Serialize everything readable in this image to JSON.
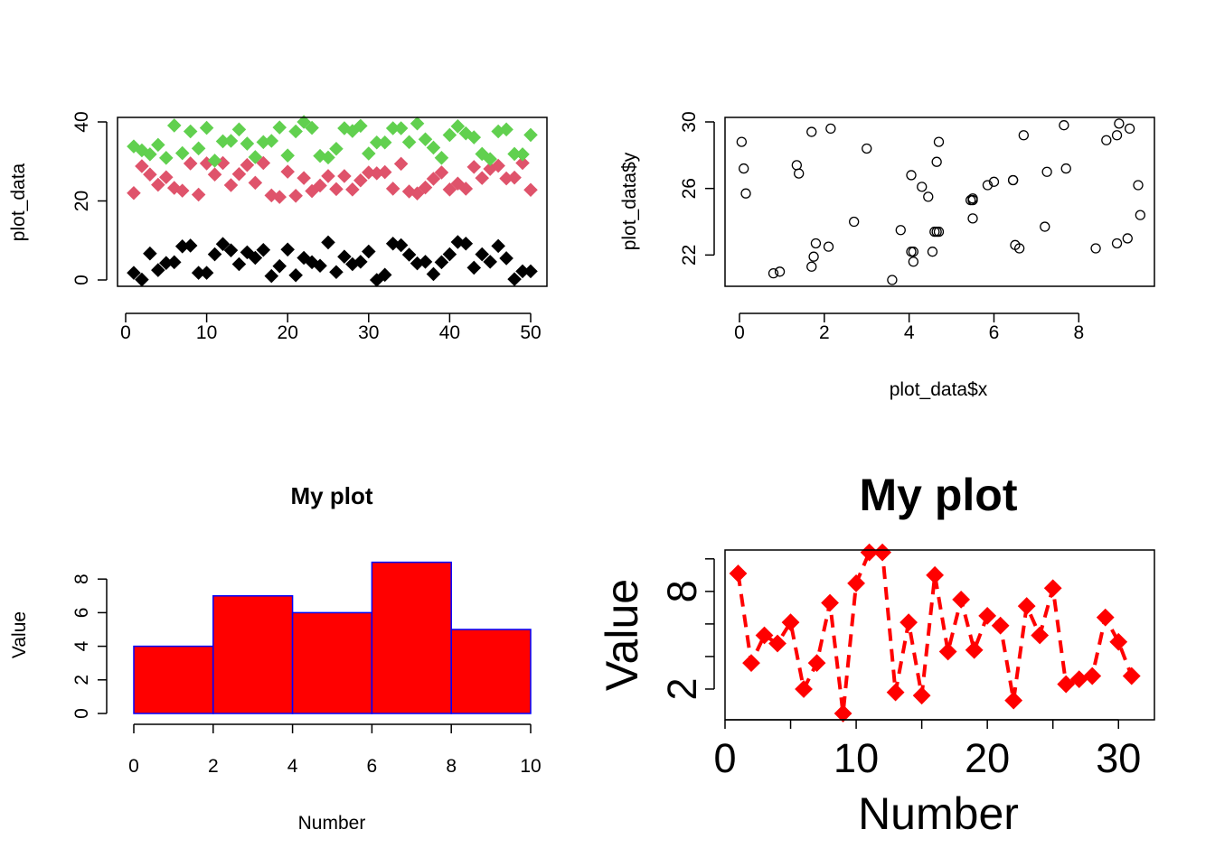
{
  "colors": {
    "black": "#000000",
    "pink": "#DF536B",
    "green": "#61D04F",
    "red": "#FF0000",
    "blue": "#0000FF"
  },
  "chart_data": [
    {
      "id": "p1",
      "type": "scatter",
      "title": "",
      "xlabel": "",
      "ylabel": "plot_data",
      "xlim": [
        0,
        50
      ],
      "ylim": [
        0,
        40
      ],
      "xticks": [
        0,
        10,
        20,
        30,
        40,
        50
      ],
      "yticks": [
        0,
        20,
        40
      ],
      "grid": false,
      "x": [
        1,
        2,
        3,
        4,
        5,
        6,
        7,
        8,
        9,
        10,
        11,
        12,
        13,
        14,
        15,
        16,
        17,
        18,
        19,
        20,
        21,
        22,
        23,
        24,
        25,
        26,
        27,
        28,
        29,
        30,
        31,
        32,
        33,
        34,
        35,
        36,
        37,
        38,
        39,
        40,
        41,
        42,
        43,
        44,
        45,
        46,
        47,
        48,
        49,
        50
      ],
      "series": [
        {
          "color": "#000000",
          "values": [
            1.8,
            0.1,
            6.7,
            2.5,
            4.3,
            4.5,
            8.5,
            8.7,
            1.8,
            1.8,
            6.5,
            9.1,
            7.5,
            4.0,
            7.0,
            5.6,
            7.6,
            1.0,
            3.5,
            7.7,
            1.2,
            5.6,
            4.5,
            3.6,
            9.5,
            2.0,
            5.9,
            4.0,
            4.6,
            7.2,
            0.0,
            1.3,
            9.2,
            8.8,
            6.4,
            4.2,
            4.6,
            1.5,
            4.5,
            6.5,
            9.6,
            9.2,
            3.1,
            6.5,
            4.6,
            8.6,
            5.5,
            0.2,
            2.2,
            2.2
          ]
        },
        {
          "color": "#DF536B",
          "values": [
            22.0,
            28.8,
            26.7,
            24.1,
            26.0,
            23.3,
            22.6,
            29.5,
            21.6,
            29.5,
            26.7,
            29.6,
            24.0,
            26.8,
            29.1,
            24.6,
            29.6,
            21.4,
            21.0,
            27.4,
            21.3,
            25.8,
            22.5,
            23.9,
            26.3,
            23.0,
            26.3,
            22.9,
            25.2,
            27.2,
            27.0,
            27.3,
            23.1,
            29.4,
            22.4,
            21.9,
            23.4,
            25.6,
            27.2,
            22.9,
            24.4,
            23.1,
            28.6,
            25.8,
            28.1,
            28.9,
            25.7,
            25.9,
            29.6,
            22.8
          ]
        },
        {
          "color": "#61D04F",
          "values": [
            33.8,
            32.8,
            31.8,
            34.2,
            30.9,
            39.1,
            32.1,
            37.6,
            33.3,
            38.5,
            30.2,
            35.1,
            35.2,
            38.1,
            34.5,
            31.1,
            34.9,
            35.2,
            38.6,
            31.5,
            37.6,
            40.0,
            38.5,
            31.4,
            31.0,
            33.2,
            38.4,
            37.7,
            39.0,
            32.0,
            34.8,
            34.8,
            38.4,
            38.4,
            34.9,
            39.6,
            35.6,
            33.5,
            30.9,
            36.7,
            38.9,
            37.1,
            36.1,
            31.9,
            30.6,
            37.6,
            38.1,
            31.9,
            31.8,
            36.7
          ]
        }
      ]
    },
    {
      "id": "p2",
      "type": "scatter",
      "title": "",
      "xlabel": "plot_data$x",
      "ylabel": "plot_data$y",
      "xlim": [
        0,
        9.4
      ],
      "ylim": [
        20.5,
        30
      ],
      "xticks": [
        0,
        2,
        4,
        6,
        8
      ],
      "yticks": [
        22,
        26,
        30
      ],
      "grid": false,
      "x": [
        0.05,
        0.1,
        0.15,
        0.8,
        0.95,
        1.35,
        1.4,
        1.7,
        1.7,
        1.75,
        1.8,
        2.1,
        2.15,
        2.7,
        3.0,
        3.6,
        3.8,
        4.05,
        4.05,
        4.1,
        4.1,
        4.3,
        4.45,
        4.55,
        4.6,
        4.65,
        4.65,
        4.7,
        4.7,
        5.45,
        5.5,
        5.5,
        5.5,
        5.85,
        6.0,
        6.45,
        6.45,
        6.5,
        6.6,
        6.7,
        7.2,
        7.25,
        7.65,
        7.7,
        8.4,
        8.65,
        8.9,
        8.9,
        8.95,
        9.15,
        9.2,
        9.4,
        9.45
      ],
      "y": [
        28.8,
        27.2,
        25.7,
        20.9,
        21.0,
        27.4,
        26.9,
        29.4,
        21.3,
        21.9,
        22.7,
        22.5,
        29.6,
        24.0,
        28.4,
        20.5,
        23.5,
        26.8,
        22.2,
        22.2,
        21.6,
        26.1,
        25.5,
        22.2,
        23.4,
        27.6,
        23.4,
        23.4,
        28.8,
        25.3,
        25.4,
        24.2,
        25.3,
        26.2,
        26.4,
        26.5,
        26.5,
        22.6,
        22.4,
        29.2,
        23.7,
        27.0,
        29.8,
        27.2,
        22.4,
        28.9,
        29.2,
        22.7,
        29.9,
        23.0,
        29.6,
        26.2,
        24.4
      ]
    },
    {
      "id": "p3",
      "type": "bar",
      "title": "My plot",
      "xlabel": "Number",
      "ylabel": "Value",
      "xlim": [
        0,
        10
      ],
      "ylim": [
        0,
        9.3
      ],
      "xticks": [
        0,
        2,
        4,
        6,
        8,
        10
      ],
      "yticks": [
        0,
        2,
        4,
        6,
        8
      ],
      "grid": false,
      "bin_edges": [
        0,
        2,
        4,
        6,
        8,
        10
      ],
      "values": [
        4,
        7,
        6,
        9,
        5
      ],
      "fill": "#FF0000",
      "border": "#0000FF"
    },
    {
      "id": "p4",
      "type": "line",
      "title": "My plot",
      "xlabel": "Number",
      "ylabel": "Value",
      "xlim": [
        0,
        31.5
      ],
      "ylim": [
        0.5,
        10.6
      ],
      "xticks": [
        0,
        10,
        20,
        30
      ],
      "xminor": [
        5,
        15,
        25
      ],
      "yticks": [
        2,
        8
      ],
      "yminor": [
        4,
        6,
        10
      ],
      "grid": false,
      "line_style": "dashed",
      "color": "#FF0000",
      "x": [
        1,
        2,
        3,
        4,
        5,
        6,
        7,
        8,
        9,
        10,
        11,
        12,
        13,
        14,
        15,
        16,
        17,
        18,
        19,
        20,
        21,
        22,
        23,
        24,
        25,
        26,
        27,
        28,
        29,
        30,
        31
      ],
      "values": [
        9.1,
        3.6,
        5.3,
        4.8,
        6.1,
        2.0,
        3.6,
        7.3,
        0.5,
        8.5,
        10.4,
        10.4,
        1.8,
        6.1,
        1.6,
        9.0,
        4.3,
        7.5,
        4.4,
        6.5,
        5.9,
        1.3,
        7.1,
        5.3,
        8.2,
        2.3,
        2.6,
        2.8,
        6.4,
        4.9,
        2.8
      ]
    }
  ]
}
